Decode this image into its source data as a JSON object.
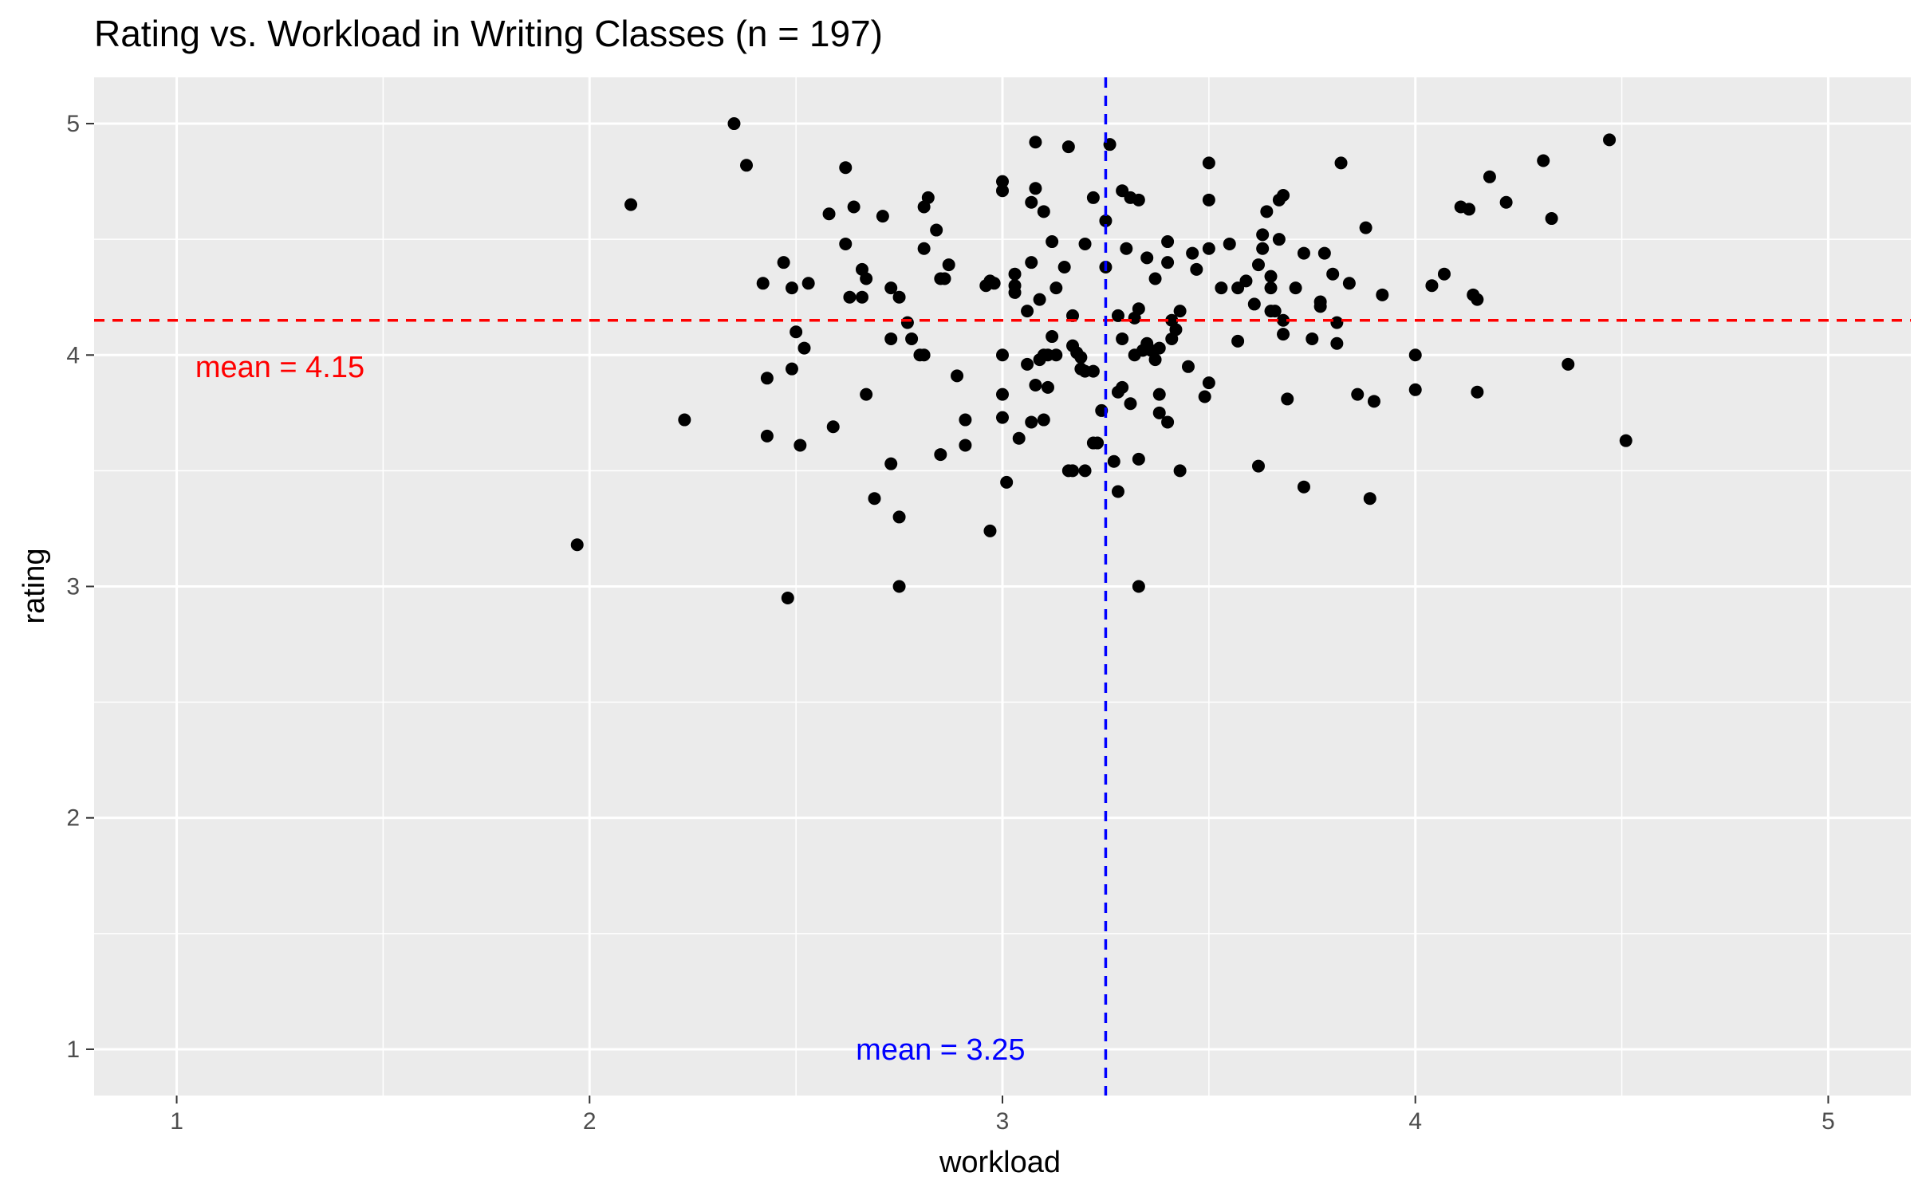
{
  "chart_data": {
    "type": "scatter",
    "title": "Rating vs. Workload in Writing Classes (n = 197)",
    "xlabel": "workload",
    "ylabel": "rating",
    "xlim": [
      0.8,
      5.2
    ],
    "ylim": [
      0.8,
      5.2
    ],
    "x_ticks": [
      "1",
      "2",
      "3",
      "4",
      "5"
    ],
    "y_ticks": [
      "1",
      "2",
      "3",
      "4",
      "5"
    ],
    "grid": true,
    "legend": "none",
    "point_color": "#000000",
    "panel_background": "#ebebeb",
    "grid_color": "#ffffff",
    "reference_lines": [
      {
        "axis": "y",
        "value": 4.15,
        "color": "#ff0000",
        "style": "dashed",
        "label": "mean =  4.15",
        "label_x": 1.25,
        "label_y": 3.95
      },
      {
        "axis": "x",
        "value": 3.25,
        "color": "#0000ff",
        "style": "dashed",
        "label": "mean =  3.25",
        "label_x": 2.85,
        "label_y": 1.0
      }
    ],
    "points": [
      [
        2.35,
        5.0
      ],
      [
        2.38,
        4.82
      ],
      [
        2.1,
        4.65
      ],
      [
        1.97,
        3.18
      ],
      [
        2.23,
        3.72
      ],
      [
        2.48,
        2.95
      ],
      [
        2.42,
        4.31
      ],
      [
        2.47,
        4.4
      ],
      [
        2.49,
        4.29
      ],
      [
        2.53,
        4.31
      ],
      [
        2.5,
        4.1
      ],
      [
        2.52,
        4.03
      ],
      [
        2.43,
        3.9
      ],
      [
        2.49,
        3.94
      ],
      [
        2.43,
        3.65
      ],
      [
        2.51,
        3.61
      ],
      [
        2.58,
        4.61
      ],
      [
        2.62,
        4.81
      ],
      [
        2.62,
        4.48
      ],
      [
        2.64,
        4.64
      ],
      [
        2.66,
        4.37
      ],
      [
        2.67,
        4.33
      ],
      [
        2.63,
        4.25
      ],
      [
        2.66,
        4.25
      ],
      [
        2.67,
        3.83
      ],
      [
        2.59,
        3.69
      ],
      [
        2.69,
        3.38
      ],
      [
        2.71,
        4.6
      ],
      [
        2.73,
        4.29
      ],
      [
        2.75,
        4.25
      ],
      [
        2.73,
        4.07
      ],
      [
        2.77,
        4.14
      ],
      [
        2.78,
        4.07
      ],
      [
        2.8,
        4.0
      ],
      [
        2.81,
        4.0
      ],
      [
        2.73,
        3.53
      ],
      [
        2.75,
        3.3
      ],
      [
        2.75,
        3.0
      ],
      [
        2.81,
        4.64
      ],
      [
        2.82,
        4.68
      ],
      [
        2.84,
        4.54
      ],
      [
        2.81,
        4.46
      ],
      [
        2.87,
        4.39
      ],
      [
        2.85,
        4.33
      ],
      [
        2.86,
        4.33
      ],
      [
        2.85,
        3.57
      ],
      [
        2.89,
        3.91
      ],
      [
        2.91,
        3.72
      ],
      [
        2.91,
        3.61
      ],
      [
        2.96,
        4.3
      ],
      [
        2.97,
        4.32
      ],
      [
        2.98,
        4.31
      ],
      [
        2.97,
        3.24
      ],
      [
        3.0,
        4.75
      ],
      [
        3.0,
        4.71
      ],
      [
        3.0,
        4.0
      ],
      [
        3.0,
        3.83
      ],
      [
        3.0,
        3.73
      ],
      [
        3.01,
        3.45
      ],
      [
        3.03,
        4.35
      ],
      [
        3.03,
        4.3
      ],
      [
        3.03,
        4.27
      ],
      [
        3.06,
        4.19
      ],
      [
        3.04,
        3.64
      ],
      [
        3.06,
        3.96
      ],
      [
        3.08,
        4.92
      ],
      [
        3.08,
        4.72
      ],
      [
        3.07,
        4.66
      ],
      [
        3.1,
        4.62
      ],
      [
        3.07,
        4.4
      ],
      [
        3.09,
        4.24
      ],
      [
        3.1,
        4.0
      ],
      [
        3.09,
        3.98
      ],
      [
        3.11,
        4.0
      ],
      [
        3.08,
        3.87
      ],
      [
        3.11,
        3.86
      ],
      [
        3.07,
        3.71
      ],
      [
        3.1,
        3.72
      ],
      [
        3.12,
        4.49
      ],
      [
        3.13,
        4.29
      ],
      [
        3.12,
        4.08
      ],
      [
        3.13,
        4.0
      ],
      [
        3.16,
        4.9
      ],
      [
        3.15,
        4.38
      ],
      [
        3.17,
        4.17
      ],
      [
        3.17,
        4.04
      ],
      [
        3.18,
        4.01
      ],
      [
        3.19,
        3.99
      ],
      [
        3.19,
        3.94
      ],
      [
        3.2,
        3.93
      ],
      [
        3.2,
        4.48
      ],
      [
        3.22,
        3.93
      ],
      [
        3.22,
        4.68
      ],
      [
        3.23,
        3.62
      ],
      [
        3.22,
        3.62
      ],
      [
        3.16,
        3.5
      ],
      [
        3.17,
        3.5
      ],
      [
        3.2,
        3.5
      ],
      [
        3.24,
        3.76
      ],
      [
        3.25,
        4.58
      ],
      [
        3.25,
        4.38
      ],
      [
        3.26,
        4.91
      ],
      [
        3.27,
        3.54
      ],
      [
        3.28,
        4.17
      ],
      [
        3.28,
        3.84
      ],
      [
        3.28,
        3.41
      ],
      [
        3.29,
        4.71
      ],
      [
        3.29,
        4.07
      ],
      [
        3.29,
        3.86
      ],
      [
        3.3,
        4.46
      ],
      [
        3.31,
        4.68
      ],
      [
        3.31,
        3.79
      ],
      [
        3.32,
        4.16
      ],
      [
        3.32,
        4.0
      ],
      [
        3.33,
        4.67
      ],
      [
        3.33,
        4.2
      ],
      [
        3.33,
        3.55
      ],
      [
        3.33,
        3.0
      ],
      [
        3.34,
        4.02
      ],
      [
        3.35,
        4.05
      ],
      [
        3.35,
        4.42
      ],
      [
        3.36,
        4.02
      ],
      [
        3.37,
        4.33
      ],
      [
        3.37,
        3.98
      ],
      [
        3.38,
        4.03
      ],
      [
        3.38,
        3.83
      ],
      [
        3.38,
        3.75
      ],
      [
        3.4,
        4.49
      ],
      [
        3.4,
        4.4
      ],
      [
        3.4,
        3.71
      ],
      [
        3.41,
        4.07
      ],
      [
        3.41,
        4.15
      ],
      [
        3.42,
        4.11
      ],
      [
        3.43,
        4.19
      ],
      [
        3.43,
        3.5
      ],
      [
        3.45,
        3.95
      ],
      [
        3.46,
        4.44
      ],
      [
        3.47,
        4.37
      ],
      [
        3.49,
        3.82
      ],
      [
        3.5,
        4.83
      ],
      [
        3.5,
        4.67
      ],
      [
        3.5,
        4.46
      ],
      [
        3.5,
        3.88
      ],
      [
        3.53,
        4.29
      ],
      [
        3.55,
        4.48
      ],
      [
        3.57,
        4.29
      ],
      [
        3.57,
        4.06
      ],
      [
        3.59,
        4.32
      ],
      [
        3.61,
        4.22
      ],
      [
        3.62,
        4.39
      ],
      [
        3.62,
        3.52
      ],
      [
        3.63,
        4.52
      ],
      [
        3.64,
        4.62
      ],
      [
        3.65,
        4.34
      ],
      [
        3.65,
        4.29
      ],
      [
        3.65,
        4.19
      ],
      [
        3.66,
        4.19
      ],
      [
        3.67,
        4.5
      ],
      [
        3.67,
        4.67
      ],
      [
        3.68,
        4.69
      ],
      [
        3.68,
        4.15
      ],
      [
        3.68,
        4.09
      ],
      [
        3.69,
        3.81
      ],
      [
        3.71,
        4.29
      ],
      [
        3.73,
        4.44
      ],
      [
        3.73,
        3.43
      ],
      [
        3.75,
        4.07
      ],
      [
        3.77,
        4.23
      ],
      [
        3.77,
        4.21
      ],
      [
        3.78,
        4.44
      ],
      [
        3.8,
        4.35
      ],
      [
        3.81,
        4.14
      ],
      [
        3.81,
        4.05
      ],
      [
        3.82,
        4.83
      ],
      [
        3.84,
        4.31
      ],
      [
        3.86,
        3.83
      ],
      [
        3.88,
        4.55
      ],
      [
        3.9,
        3.8
      ],
      [
        3.89,
        3.38
      ],
      [
        3.92,
        4.26
      ],
      [
        4.0,
        4.0
      ],
      [
        4.0,
        3.85
      ],
      [
        4.04,
        4.3
      ],
      [
        4.07,
        4.35
      ],
      [
        4.11,
        4.64
      ],
      [
        4.13,
        4.63
      ],
      [
        4.14,
        4.26
      ],
      [
        4.15,
        4.24
      ],
      [
        4.15,
        3.84
      ],
      [
        4.18,
        4.77
      ],
      [
        4.22,
        4.66
      ],
      [
        4.31,
        4.84
      ],
      [
        4.33,
        4.59
      ],
      [
        4.37,
        3.96
      ],
      [
        4.47,
        4.93
      ],
      [
        4.51,
        3.63
      ],
      [
        3.63,
        4.46
      ]
    ]
  }
}
